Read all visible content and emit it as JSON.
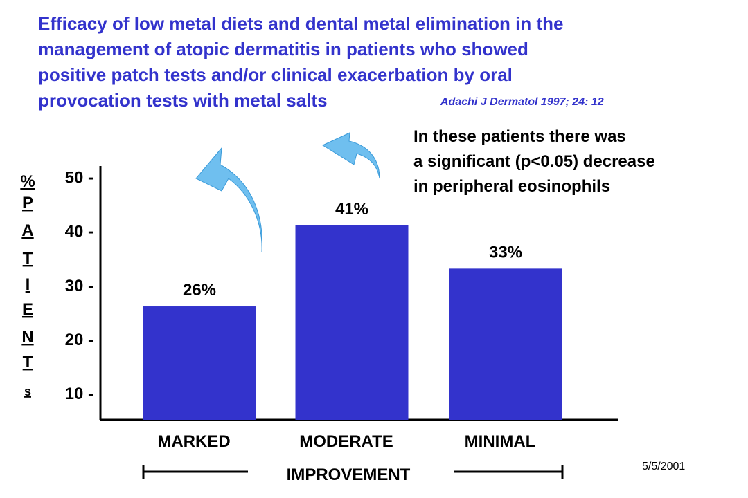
{
  "title_lines": [
    "Efficacy of low metal diets and dental metal elimination in the",
    "management of atopic dermatitis in patients who showed",
    "positive patch tests and/or clinical exacerbation by oral",
    "provocation tests with metal salts"
  ],
  "citation": "Adachi J Dermatol 1997; 24: 12",
  "note_lines": [
    "In these patients there was",
    "a significant (p<0.05) decrease",
    "in peripheral eosinophils"
  ],
  "date": "5/5/2001",
  "colors": {
    "title": "#3333cc",
    "bar": "#3333cc",
    "arrow": "#6fbfef",
    "arrow_stroke": "#3a9ad9"
  },
  "chart_data": {
    "type": "bar",
    "categories": [
      "MARKED",
      "MODERATE",
      "MINIMAL"
    ],
    "values": [
      26,
      41,
      33
    ],
    "data_labels": [
      "26%",
      "41%",
      "33%"
    ],
    "yticks": [
      10,
      20,
      30,
      40,
      50
    ],
    "ytick_labels": [
      "10 -",
      "20 -",
      "30 -",
      "40 -",
      "50 -"
    ],
    "ylim": [
      5,
      52
    ],
    "ylabel_chars": [
      "%",
      "P",
      "A",
      "T",
      "I",
      "E",
      "N",
      "T",
      "s"
    ],
    "xlabel": "IMPROVEMENT",
    "grid": false,
    "legend": "none"
  }
}
